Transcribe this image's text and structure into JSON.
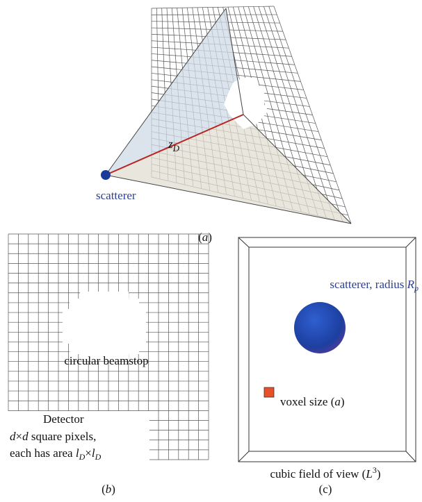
{
  "panel_a": {
    "scatterer_label": "scatterer",
    "distance_label": [
      "z",
      "D"
    ],
    "caption": [
      "(",
      "a",
      ")"
    ]
  },
  "panel_b": {
    "beamstop_label": "circular beamstop",
    "detector_title": "Detector",
    "detector_line2": [
      "d",
      "×",
      "d",
      " square pixels,"
    ],
    "detector_line3": [
      "each has area ",
      "l",
      "D",
      "×",
      "l",
      "D"
    ],
    "caption": [
      "(",
      "b",
      ")"
    ]
  },
  "panel_c": {
    "scatterer_label": [
      "scatterer, radius ",
      "R",
      "p"
    ],
    "voxel_label": [
      "voxel size (",
      "a",
      ")"
    ],
    "fov_label": [
      "cubic field of view (",
      "L",
      "3",
      ")"
    ],
    "caption": "(c)"
  }
}
